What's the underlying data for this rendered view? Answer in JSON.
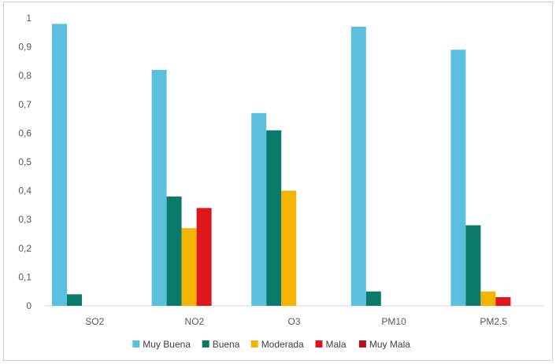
{
  "chart_data": {
    "type": "bar",
    "categories": [
      "SO2",
      "NO2",
      "O3",
      "PM10",
      "PM2.5"
    ],
    "series": [
      {
        "name": "Muy Buena",
        "color": "#5bc0de",
        "values": [
          0.98,
          0.82,
          0.67,
          0.97,
          0.89
        ]
      },
      {
        "name": "Buena",
        "color": "#0b7a6b",
        "values": [
          0.04,
          0.38,
          0.61,
          0.05,
          0.28
        ]
      },
      {
        "name": "Moderada",
        "color": "#f4b400",
        "values": [
          0,
          0.27,
          0.4,
          0,
          0.05
        ]
      },
      {
        "name": "Mala",
        "color": "#e0161e",
        "values": [
          0,
          0.34,
          0,
          0,
          0.03
        ]
      },
      {
        "name": "Muy Mala",
        "color": "#b3121c",
        "values": [
          0,
          0,
          0,
          0,
          0
        ]
      }
    ],
    "y_ticks": [
      "0",
      "0,1",
      "0,2",
      "0,3",
      "0,4",
      "0,5",
      "0,6",
      "0,7",
      "0,8",
      "0,9",
      "1"
    ],
    "ylim": [
      0,
      1
    ],
    "grid": false,
    "legend_position": "bottom"
  }
}
